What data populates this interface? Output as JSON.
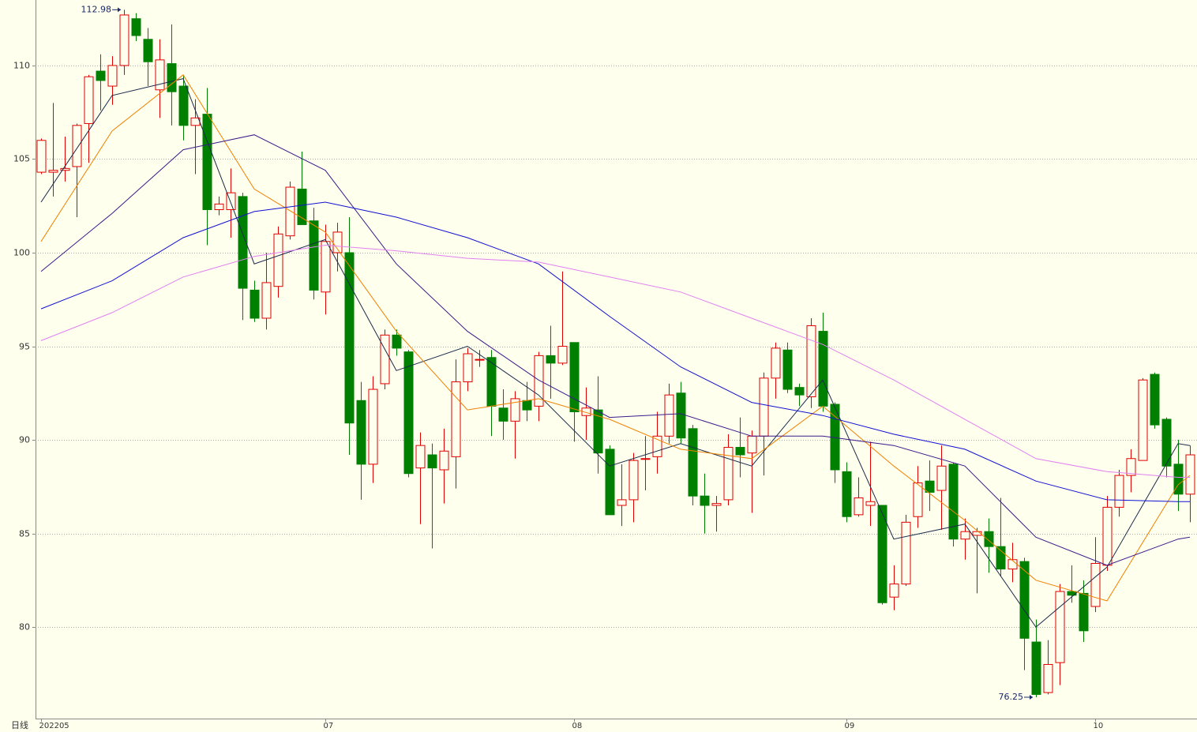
{
  "chart_data": {
    "type": "candlestick",
    "axis_label": "日线",
    "open": [
      104.3,
      104.3,
      104.4,
      104.6,
      106.9,
      109.7,
      108.9,
      110.0,
      112.5,
      111.4,
      108.7,
      110.1,
      108.9,
      106.8,
      107.4,
      102.3,
      102.3,
      103.0,
      98.0,
      96.5,
      98.2,
      100.9,
      103.4,
      101.7,
      97.9,
      100.0,
      100.0,
      92.1,
      88.7,
      93.0,
      95.6,
      94.7,
      88.5,
      89.2,
      88.4,
      89.1,
      93.1,
      94.3,
      94.4,
      91.7,
      91.0,
      92.1,
      91.8,
      94.5,
      94.1,
      95.2,
      91.3,
      91.6,
      89.5,
      86.5,
      86.8,
      89.0,
      89.1,
      90.2,
      92.5,
      90.6,
      87.0,
      86.5,
      86.8,
      89.6,
      89.3,
      90.2,
      93.3,
      94.8,
      92.8,
      92.3,
      95.8,
      91.9,
      88.3,
      86.0,
      86.5,
      86.5,
      81.6,
      82.3,
      85.9,
      87.8,
      87.3,
      88.7,
      84.7,
      84.9,
      85.1,
      84.3,
      83.1,
      83.5,
      79.2,
      76.5,
      78.1,
      81.9,
      81.8,
      81.1,
      83.3,
      86.4,
      88.1,
      88.9,
      93.5,
      91.1,
      88.7,
      87.1
    ],
    "high": [
      106.1,
      108.0,
      106.2,
      106.9,
      109.5,
      110.6,
      110.5,
      112.98,
      112.8,
      112.0,
      111.4,
      112.2,
      109.5,
      108.2,
      108.8,
      103.0,
      104.5,
      103.2,
      98.5,
      100.0,
      101.4,
      103.8,
      105.4,
      102.4,
      101.5,
      101.6,
      101.9,
      93.1,
      93.4,
      95.9,
      95.9,
      94.8,
      90.4,
      89.8,
      90.6,
      94.3,
      94.9,
      94.8,
      94.8,
      92.7,
      92.6,
      93.1,
      94.7,
      96.1,
      99.0,
      95.2,
      92.8,
      93.4,
      89.7,
      88.7,
      89.3,
      90.2,
      91.5,
      93.0,
      93.1,
      90.8,
      88.2,
      87.0,
      90.3,
      91.2,
      90.5,
      93.6,
      95.2,
      95.2,
      93.0,
      96.5,
      96.8,
      92.0,
      88.8,
      88.0,
      89.9,
      86.5,
      83.3,
      86.0,
      88.6,
      88.9,
      89.7,
      88.8,
      85.8,
      85.3,
      85.8,
      86.9,
      84.5,
      83.7,
      80.4,
      79.3,
      82.3,
      83.3,
      82.5,
      84.8,
      87.0,
      88.4,
      89.5,
      93.3,
      93.6,
      91.2,
      90.0,
      89.7
    ],
    "low": [
      104.2,
      103.0,
      103.8,
      101.9,
      104.8,
      107.6,
      107.9,
      109.5,
      111.3,
      108.9,
      107.2,
      106.8,
      106.0,
      104.2,
      100.4,
      102.0,
      100.8,
      96.4,
      96.3,
      95.9,
      97.6,
      100.7,
      101.5,
      97.5,
      96.7,
      99.0,
      89.2,
      86.8,
      87.7,
      92.7,
      94.5,
      88.0,
      85.5,
      84.2,
      86.6,
      87.4,
      92.6,
      93.9,
      90.2,
      90.0,
      89.0,
      91.0,
      91.0,
      92.2,
      94.0,
      89.9,
      90.0,
      88.2,
      86.0,
      85.4,
      85.6,
      87.3,
      88.2,
      89.8,
      89.8,
      86.5,
      85.0,
      85.1,
      86.5,
      88.0,
      86.1,
      88.1,
      92.2,
      92.5,
      91.8,
      91.7,
      91.5,
      87.7,
      85.6,
      85.9,
      85.4,
      81.2,
      80.9,
      82.2,
      85.3,
      86.2,
      85.2,
      84.3,
      83.6,
      81.8,
      82.9,
      82.7,
      82.4,
      77.7,
      76.25,
      76.4,
      76.9,
      81.3,
      79.2,
      80.8,
      83.0,
      85.9,
      87.2,
      88.9,
      90.6,
      88.0,
      86.2,
      85.6
    ],
    "close": [
      106.0,
      104.4,
      104.5,
      106.8,
      109.4,
      109.2,
      110.0,
      112.7,
      111.6,
      110.2,
      110.3,
      108.6,
      106.8,
      107.2,
      102.3,
      102.6,
      103.2,
      98.1,
      96.5,
      98.4,
      101.0,
      103.5,
      101.5,
      98.0,
      100.6,
      101.1,
      90.9,
      88.7,
      92.7,
      95.6,
      94.9,
      88.2,
      89.7,
      88.5,
      89.4,
      93.1,
      94.6,
      94.3,
      91.8,
      91.0,
      92.2,
      91.6,
      94.5,
      94.1,
      95.0,
      91.5,
      91.7,
      89.3,
      86.0,
      86.8,
      88.9,
      89.0,
      90.2,
      92.4,
      90.1,
      87.0,
      86.5,
      86.6,
      89.6,
      89.2,
      90.2,
      93.3,
      94.9,
      92.7,
      92.4,
      96.1,
      91.8,
      88.4,
      85.9,
      86.9,
      86.7,
      81.3,
      82.3,
      85.6,
      87.7,
      87.2,
      88.6,
      84.7,
      85.1,
      85.1,
      84.3,
      83.1,
      83.6,
      79.4,
      76.4,
      78.0,
      81.9,
      81.7,
      79.8,
      83.4,
      86.4,
      88.1,
      89.0,
      93.2,
      90.8,
      88.6,
      87.1,
      89.2
    ],
    "up_color": "#e00000",
    "down_color": "#008000",
    "lines": [
      {
        "color": "#1a2a4a",
        "x": [
          0,
          6,
          12,
          18,
          24,
          30,
          36,
          42,
          48,
          54,
          60,
          66,
          72,
          78,
          84,
          90,
          96,
          97
        ],
        "values": [
          102.7,
          108.4,
          109.3,
          99.4,
          100.7,
          93.7,
          95.0,
          92.4,
          88.6,
          89.8,
          88.6,
          93.2,
          84.7,
          85.5,
          80.0,
          83.2,
          89.8,
          89.7
        ]
      },
      {
        "color": "#f08000",
        "x": [
          0,
          6,
          12,
          18,
          24,
          30,
          36,
          42,
          48,
          54,
          60,
          66,
          72,
          78,
          84,
          90,
          96,
          97
        ],
        "values": [
          100.6,
          106.5,
          109.5,
          103.4,
          101.1,
          95.8,
          91.6,
          92.2,
          91.1,
          89.5,
          89.0,
          91.8,
          88.6,
          85.7,
          82.5,
          81.4,
          87.6,
          88.1
        ]
      },
      {
        "color": "#3a1a8a",
        "x": [
          0,
          6,
          12,
          18,
          24,
          30,
          36,
          42,
          48,
          54,
          60,
          66,
          72,
          78,
          84,
          90,
          96,
          97
        ],
        "values": [
          99.0,
          102.1,
          105.5,
          106.3,
          104.4,
          99.4,
          95.8,
          93.2,
          91.2,
          91.4,
          90.2,
          90.2,
          89.7,
          88.6,
          84.8,
          83.3,
          84.7,
          84.8
        ]
      },
      {
        "color": "#1010d0",
        "x": [
          0,
          6,
          12,
          18,
          24,
          30,
          36,
          42,
          48,
          54,
          60,
          66,
          72,
          78,
          84,
          90,
          96,
          97
        ],
        "values": [
          97.0,
          98.5,
          100.8,
          102.2,
          102.7,
          101.9,
          100.8,
          99.4,
          96.6,
          93.9,
          92.0,
          91.3,
          90.3,
          89.5,
          87.8,
          86.8,
          86.7,
          86.7
        ]
      },
      {
        "color": "#e080f0",
        "x": [
          0,
          6,
          12,
          18,
          24,
          30,
          36,
          42,
          48,
          54,
          60,
          66,
          72,
          78,
          84,
          90,
          96,
          97
        ],
        "values": [
          95.3,
          96.8,
          98.7,
          99.8,
          100.4,
          100.1,
          99.7,
          99.5,
          98.7,
          97.9,
          96.5,
          95.1,
          93.2,
          91.1,
          89.0,
          88.3,
          88.0,
          88.0
        ]
      }
    ],
    "annotations": [
      {
        "x": 7,
        "y": 112.98
      },
      {
        "x": 84,
        "y": 76.25
      }
    ],
    "xlim": [
      -0.47,
      97.6
    ],
    "xticks": [
      {
        "value": 0,
        "label": "202205"
      },
      {
        "value": 24,
        "label": "07"
      },
      {
        "value": 45,
        "label": "08"
      },
      {
        "value": 68,
        "label": "09"
      },
      {
        "value": 89,
        "label": "10"
      }
    ],
    "ylim": [
      75.11,
      113.5
    ],
    "yticks": [
      80,
      85,
      90,
      95,
      100,
      105,
      110
    ],
    "grid": true
  }
}
